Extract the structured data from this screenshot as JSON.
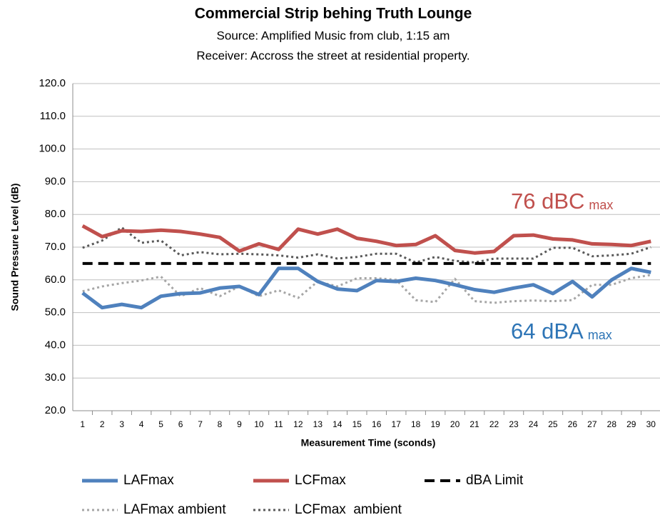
{
  "chart_data": {
    "type": "line",
    "title": "Commercial Strip behing Truth Lounge",
    "subtitle": [
      "Source: Amplified Music from club, 1:15 am",
      "Receiver: Accross the street at residential property."
    ],
    "y_label": "Sound Pressure Level (dB)",
    "x_label": "Measurement Time (sconds)",
    "categories": [
      "1",
      "2",
      "3",
      "4",
      "5",
      "6",
      "7",
      "8",
      "9",
      "10",
      "11",
      "12",
      "13",
      "14",
      "15",
      "16",
      "17",
      "18",
      "19",
      "20",
      "21",
      "22",
      "23",
      "24",
      "25",
      "26",
      "27",
      "28",
      "29",
      "30"
    ],
    "ylim": [
      20,
      120
    ],
    "yticks": [
      {
        "value": 20,
        "label": "20.0"
      },
      {
        "value": 30,
        "label": "30.0"
      },
      {
        "value": 40,
        "label": "40.0"
      },
      {
        "value": 50,
        "label": "50.0"
      },
      {
        "value": 60,
        "label": "60.0"
      },
      {
        "value": 70,
        "label": "70.0"
      },
      {
        "value": 80,
        "label": "80.0"
      },
      {
        "value": 90,
        "label": "90.0"
      },
      {
        "value": 100,
        "label": "100.0"
      },
      {
        "value": 110,
        "label": "110.0"
      },
      {
        "value": 120,
        "label": "120.0"
      }
    ],
    "grid": true,
    "legend": "bottom",
    "series": [
      {
        "name": "LAFmax",
        "color": "#4f81bd",
        "dash": "solid",
        "width": 5,
        "values": [
          56,
          51.5,
          52.5,
          51.5,
          55,
          55.8,
          56,
          57.5,
          58,
          55.5,
          63.5,
          63.5,
          59.5,
          57.2,
          56.7,
          59.8,
          59.5,
          60.5,
          59.8,
          58.5,
          57,
          56.2,
          57.5,
          58.5,
          55.8,
          59.5,
          54.8,
          60,
          63.5,
          62.3
        ]
      },
      {
        "name": "LCFmax",
        "color": "#c0504d",
        "dash": "solid",
        "width": 5,
        "values": [
          76.5,
          73.2,
          75,
          74.8,
          75.2,
          74.8,
          74,
          73,
          68.8,
          71,
          69.3,
          75.5,
          74,
          75.5,
          72.7,
          71.8,
          70.5,
          70.8,
          73.5,
          69,
          68.2,
          68.7,
          73.5,
          73.7,
          72.5,
          72.2,
          71,
          70.8,
          70.5,
          71.8
        ]
      },
      {
        "name": "dBA Limit",
        "color": "#000000",
        "dash": "dashed",
        "width": 4,
        "values": [
          65,
          65,
          65,
          65,
          65,
          65,
          65,
          65,
          65,
          65,
          65,
          65,
          65,
          65,
          65,
          65,
          65,
          65,
          65,
          65,
          65,
          65,
          65,
          65,
          65,
          65,
          65,
          65,
          65,
          65
        ]
      },
      {
        "name": "LAFmax ambient",
        "color": "#a6a6a6",
        "dash": "dotted",
        "width": 3,
        "values": [
          56.5,
          58,
          59,
          59.8,
          61,
          55,
          57.5,
          55,
          58,
          55,
          56.8,
          54.5,
          59.5,
          58,
          60.5,
          60.5,
          60,
          53.8,
          53.2,
          60.3,
          53.5,
          53,
          53.5,
          53.7,
          53.5,
          53.8,
          58.5,
          58.5,
          60.5,
          61.5
        ]
      },
      {
        "name": "LCFmax  ambient",
        "color": "#595959",
        "dash": "dotted",
        "width": 3,
        "values": [
          69.8,
          72,
          76,
          71.3,
          72,
          67.5,
          68.5,
          67.8,
          68,
          67.8,
          67.5,
          66.8,
          67.8,
          66.5,
          67,
          68,
          68,
          65.3,
          67,
          65.8,
          65.3,
          66.5,
          66.5,
          66.5,
          69.8,
          69.8,
          67.2,
          67.5,
          68,
          70
        ]
      }
    ],
    "annotations": [
      {
        "text": "76 dBC",
        "sub": "max",
        "color": "#c0504d"
      },
      {
        "text": "64 dBA",
        "sub": "max",
        "color": "#2e75b6"
      }
    ]
  }
}
